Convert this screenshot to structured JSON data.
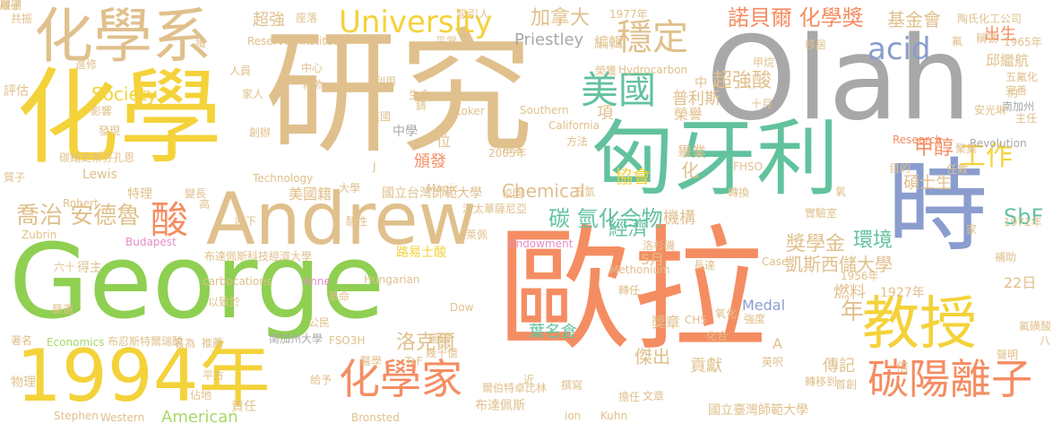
{
  "palette": {
    "tan": "#e0c08c",
    "gray": "#a8a8a8",
    "teal": "#62c29e",
    "yellow": "#f4d23a",
    "green": "#8fcf52",
    "orange": "#f58d62",
    "blue": "#8a9dce",
    "pink": "#e58cc6",
    "lightgreen": "#a8d86a",
    "sand": "#e6c27a"
  },
  "words": [
    {
      "text": "歐拉",
      "color": "#f58d62"
    },
    {
      "text": "研究",
      "color": "#e0c08c"
    },
    {
      "text": "Olah",
      "color": "#a8a8a8"
    },
    {
      "text": "George",
      "color": "#8fcf52"
    },
    {
      "text": "化學",
      "color": "#f4d23a"
    },
    {
      "text": "匈牙利",
      "color": "#62c29e"
    },
    {
      "text": "時",
      "color": "#8a9dce"
    },
    {
      "text": "Andrew",
      "color": "#e0c08c"
    },
    {
      "text": "化學系",
      "color": "#e0c08c"
    },
    {
      "text": "1994年",
      "color": "#f4d23a"
    },
    {
      "text": "教授",
      "color": "#f4d23a"
    },
    {
      "text": "化學家",
      "color": "#f58d62"
    },
    {
      "text": "碳陽離子",
      "color": "#f58d62"
    },
    {
      "text": "University",
      "color": "#f4d23a"
    },
    {
      "text": "穩定",
      "color": "#e0c08c"
    },
    {
      "text": "美國",
      "color": "#62c29e"
    },
    {
      "text": "酸",
      "color": "#f58d62"
    },
    {
      "text": "工作",
      "color": "#f4d23a"
    },
    {
      "text": "諾貝爾 化學獎",
      "color": "#f58d62"
    },
    {
      "text": "acid",
      "color": "#8a9dce"
    },
    {
      "text": "年",
      "color": "#e0c08c"
    },
    {
      "text": "喬治 安德魯",
      "color": "#e0c08c"
    },
    {
      "text": "碳 氫化合物",
      "color": "#62c29e"
    },
    {
      "text": "加拿大",
      "color": "#e0c08c"
    },
    {
      "text": "超強",
      "color": "#e0c08c"
    },
    {
      "text": "基金會",
      "color": "#e0c08c"
    },
    {
      "text": "出生",
      "color": "#f58d62"
    },
    {
      "text": "SbF",
      "color": "#62c29e"
    },
    {
      "text": "甲醇",
      "color": "#f58d62"
    },
    {
      "text": "Chemical",
      "color": "#e0c08c"
    },
    {
      "text": "協會",
      "color": "#f4d23a"
    },
    {
      "text": "頒發",
      "color": "#f58d62"
    },
    {
      "text": "洛克爾",
      "color": "#e0c08c"
    },
    {
      "text": "凱斯西儲大學",
      "color": "#e0c08c"
    },
    {
      "text": "獎學金",
      "color": "#e0c08c"
    },
    {
      "text": "環境",
      "color": "#62c29e"
    },
    {
      "text": "經濟",
      "color": "#62c29e"
    },
    {
      "text": "機構",
      "color": "#e0c08c"
    },
    {
      "text": "Society",
      "color": "#f4d23a"
    },
    {
      "text": "超強酸",
      "color": "#e0c08c"
    },
    {
      "text": "Priestley",
      "color": "#a8a8a8"
    },
    {
      "text": "American",
      "color": "#a8d86a"
    },
    {
      "text": "燃料",
      "color": "#e0c08c"
    },
    {
      "text": "傳記",
      "color": "#e0c08c"
    },
    {
      "text": "傑出",
      "color": "#e0c08c"
    },
    {
      "text": "貢獻",
      "color": "#e0c08c"
    },
    {
      "text": "國立台灣師範大學",
      "color": "#e0c08c"
    },
    {
      "text": "國立臺灣師範大學",
      "color": "#e0c08c"
    },
    {
      "text": "南加州大學",
      "color": "#a8a8a8"
    },
    {
      "text": "布達佩斯",
      "color": "#e0c08c"
    },
    {
      "text": "葉名倉",
      "color": "#62c29e"
    },
    {
      "text": "Medal",
      "color": "#8a9dce"
    },
    {
      "text": "1927年",
      "color": "#e0c08c"
    },
    {
      "text": "碩士生",
      "color": "#e0c08c"
    },
    {
      "text": "22日",
      "color": "#e0c08c"
    },
    {
      "text": "美國籍",
      "color": "#e0c08c"
    },
    {
      "text": "大學",
      "color": "#e0c08c"
    },
    {
      "text": "得主",
      "color": "#e0c08c"
    },
    {
      "text": "六十",
      "color": "#e0c08c"
    },
    {
      "text": "特理",
      "color": "#e0c08c"
    },
    {
      "text": "邱繼航",
      "color": "#e0c08c"
    },
    {
      "text": "路易士酸",
      "color": "#f4d23a"
    },
    {
      "text": "化",
      "color": "#e0c08c"
    },
    {
      "text": "項",
      "color": "#e0c08c"
    },
    {
      "text": "位",
      "color": "#e0c08c"
    },
    {
      "text": "中學",
      "color": "#a8a8a8"
    },
    {
      "text": "畢業",
      "color": "#e0c08c"
    },
    {
      "text": "榮譽",
      "color": "#e0c08c"
    },
    {
      "text": "普利斯",
      "color": "#e0c08c"
    },
    {
      "text": "中",
      "color": "#e0c08c"
    },
    {
      "text": "責任",
      "color": "#e0c08c"
    },
    {
      "text": "5月",
      "color": "#e0c08c"
    },
    {
      "text": "獎章",
      "color": "#e0c08c"
    },
    {
      "text": "A",
      "color": "#e0c08c"
    },
    {
      "text": "編輯",
      "color": "#e0c08c"
    },
    {
      "text": "陶氏化工公司",
      "color": "#e0c08c"
    },
    {
      "text": "1965年",
      "color": "#e0c08c"
    },
    {
      "text": "南加州",
      "color": "#a8a8a8"
    },
    {
      "text": "Revolution",
      "color": "#a8a8a8"
    },
    {
      "text": "Research",
      "color": "#f58d62"
    },
    {
      "text": "1971年",
      "color": "#e0c08c"
    },
    {
      "text": "1956年",
      "color": "#e0c08c"
    },
    {
      "text": "1977年",
      "color": "#e0c08c"
    },
    {
      "text": "2005年",
      "color": "#e0c08c"
    },
    {
      "text": "Hungarian",
      "color": "#e0c08c"
    },
    {
      "text": "Methonium",
      "color": "#e0c08c"
    },
    {
      "text": "Endowment",
      "color": "#e58cc6"
    },
    {
      "text": "carbocations",
      "color": "#e0c08c"
    },
    {
      "text": "Budapest",
      "color": "#e58cc6"
    },
    {
      "text": "Economics",
      "color": "#a8d86a"
    },
    {
      "text": "Stephen",
      "color": "#e0c08c"
    },
    {
      "text": "Western",
      "color": "#e0c08c"
    },
    {
      "text": "Lewis",
      "color": "#e0c08c"
    },
    {
      "text": "Technology",
      "color": "#e0c08c"
    },
    {
      "text": "Magic",
      "color": "#e0c08c"
    },
    {
      "text": "Southern",
      "color": "#e0c08c"
    },
    {
      "text": "California",
      "color": "#e0c08c"
    },
    {
      "text": "Loker",
      "color": "#e0c08c"
    },
    {
      "text": "Hydrocarbon",
      "color": "#e0c08c"
    },
    {
      "text": "Institute",
      "color": "#e0c08c"
    },
    {
      "text": "Reserve",
      "color": "#e0c08c"
    },
    {
      "text": "Robert",
      "color": "#e0c08c"
    },
    {
      "text": "Zubrin",
      "color": "#e0c08c"
    },
    {
      "text": "Case",
      "color": "#e0c08c"
    },
    {
      "text": "Kuhn",
      "color": "#e0c08c"
    },
    {
      "text": "Dow",
      "color": "#e0c08c"
    },
    {
      "text": "Anne",
      "color": "#e58cc6"
    },
    {
      "text": "Bronsted",
      "color": "#e0c08c"
    },
    {
      "text": "ion",
      "color": "#e0c08c"
    },
    {
      "text": "CH5",
      "color": "#e0c08c"
    },
    {
      "text": "FSO3H",
      "color": "#e0c08c"
    },
    {
      "text": "TaF",
      "color": "#e0c08c"
    },
    {
      "text": "FHSO",
      "color": "#e0c08c"
    },
    {
      "text": "J",
      "color": "#e0c08c"
    },
    {
      "text": "布達佩斯科技經濟大學",
      "color": "#e0c08c"
    },
    {
      "text": "布忍斯特爾瑞酸",
      "color": "#e0c08c"
    },
    {
      "text": "渥太華薩尼亞",
      "color": "#e0c08c"
    },
    {
      "text": "史蒂芬孔恩",
      "color": "#e0c08c"
    },
    {
      "text": "洛杉磯",
      "color": "#e0c08c"
    },
    {
      "text": "萊佩",
      "color": "#e0c08c"
    },
    {
      "text": "評估",
      "color": "#e0c08c"
    },
    {
      "text": "影響",
      "color": "#e0c08c"
    },
    {
      "text": "發現",
      "color": "#e0c08c"
    },
    {
      "text": "創辦",
      "color": "#e0c08c"
    },
    {
      "text": "主任",
      "color": "#e0c08c"
    },
    {
      "text": "完善",
      "color": "#e0c08c"
    },
    {
      "text": "五氟化",
      "color": "#e0c08c"
    },
    {
      "text": "聚集",
      "color": "#e0c08c"
    },
    {
      "text": "進修",
      "color": "#e0c08c"
    },
    {
      "text": "人員",
      "color": "#e0c08c"
    },
    {
      "text": "稱為",
      "color": "#e0c08c"
    },
    {
      "text": "中心",
      "color": "#e0c08c"
    },
    {
      "text": "吸引人",
      "color": "#e0c08c"
    },
    {
      "text": "座落",
      "color": "#e0c08c"
    },
    {
      "text": "共振",
      "color": "#e0c08c"
    },
    {
      "text": "移居",
      "color": "#e0c08c"
    },
    {
      "text": "甲烷",
      "color": "#e0c08c"
    },
    {
      "text": "氧",
      "color": "#e0c08c"
    },
    {
      "text": "十月",
      "color": "#e0c08c"
    },
    {
      "text": "安光琳",
      "color": "#e0c08c"
    },
    {
      "text": "目的",
      "color": "#e0c08c"
    },
    {
      "text": "任教",
      "color": "#e0c08c"
    },
    {
      "text": "長達",
      "color": "#e0c08c"
    },
    {
      "text": "家",
      "color": "#e0c08c"
    },
    {
      "text": "實驗室",
      "color": "#e0c08c"
    },
    {
      "text": "氧化",
      "color": "#e0c08c"
    },
    {
      "text": "強度",
      "color": "#e0c08c"
    },
    {
      "text": "英呎",
      "color": "#e0c08c"
    },
    {
      "text": "轉移到",
      "color": "#e0c08c"
    },
    {
      "text": "稱號",
      "color": "#e0c08c"
    },
    {
      "text": "文章",
      "color": "#e0c08c"
    },
    {
      "text": "擔任",
      "color": "#e0c08c"
    },
    {
      "text": "撰寫",
      "color": "#e0c08c"
    },
    {
      "text": "聲明",
      "color": "#e0c08c"
    },
    {
      "text": "補助",
      "color": "#e0c08c"
    },
    {
      "text": "首創",
      "color": "#e0c08c"
    },
    {
      "text": "物理",
      "color": "#e0c08c"
    },
    {
      "text": "平方",
      "color": "#e0c08c"
    },
    {
      "text": "推薦",
      "color": "#e0c08c"
    },
    {
      "text": "名為",
      "color": "#e0c08c"
    },
    {
      "text": "著名",
      "color": "#e0c08c"
    },
    {
      "text": "篩選",
      "color": "#e0c08c"
    },
    {
      "text": "以致於",
      "color": "#e0c08c"
    },
    {
      "text": "革命",
      "color": "#e0c08c"
    },
    {
      "text": "公民",
      "color": "#e0c08c"
    },
    {
      "text": "圖譜",
      "color": "#e0c08c"
    },
    {
      "text": "佔地",
      "color": "#e0c08c"
    },
    {
      "text": "給予",
      "color": "#e0c08c"
    },
    {
      "text": "醫學",
      "color": "#e0c08c"
    },
    {
      "text": "酸性",
      "color": "#e0c08c"
    },
    {
      "text": "底下",
      "color": "#e0c08c"
    },
    {
      "text": "高",
      "color": "#e0c08c"
    },
    {
      "text": "變長",
      "color": "#e0c08c"
    },
    {
      "text": "校園",
      "color": "#e0c08c"
    },
    {
      "text": "五氫",
      "color": "#e0c08c"
    },
    {
      "text": "轉換",
      "color": "#e0c08c"
    },
    {
      "text": "質子",
      "color": "#e0c08c"
    },
    {
      "text": "碳鎓",
      "color": "#e0c08c"
    },
    {
      "text": "鋳",
      "color": "#e0c08c"
    },
    {
      "text": "生命",
      "color": "#e0c08c"
    },
    {
      "text": "利用",
      "color": "#e0c08c"
    },
    {
      "text": "榮獲",
      "color": "#e0c08c"
    },
    {
      "text": "家人",
      "color": "#e0c08c"
    },
    {
      "text": "英國",
      "color": "#e0c08c"
    },
    {
      "text": "包含",
      "color": "#e0c08c"
    },
    {
      "text": "方法",
      "color": "#e0c08c"
    },
    {
      "text": "平常",
      "color": "#e0c08c"
    },
    {
      "text": "化合",
      "color": "#e0c08c"
    },
    {
      "text": "轉任",
      "color": "#e0c08c"
    },
    {
      "text": "幾十億",
      "color": "#e0c08c"
    },
    {
      "text": "爾伯特卓比林",
      "color": "#e0c08c"
    },
    {
      "text": "氟磺酸",
      "color": "#e0c08c"
    },
    {
      "text": "獲",
      "color": "#e0c08c"
    },
    {
      "text": "約",
      "color": "#e0c08c"
    },
    {
      "text": "八",
      "color": "#e0c08c"
    },
    {
      "text": "近",
      "color": "#e0c08c"
    },
    {
      "text": "倍",
      "color": "#e0c08c"
    },
    {
      "text": "氟",
      "color": "#e0c08c"
    },
    {
      "text": "離子",
      "color": "#e0c08c"
    },
    {
      "text": "碳硼",
      "color": "#e0c08c"
    }
  ]
}
